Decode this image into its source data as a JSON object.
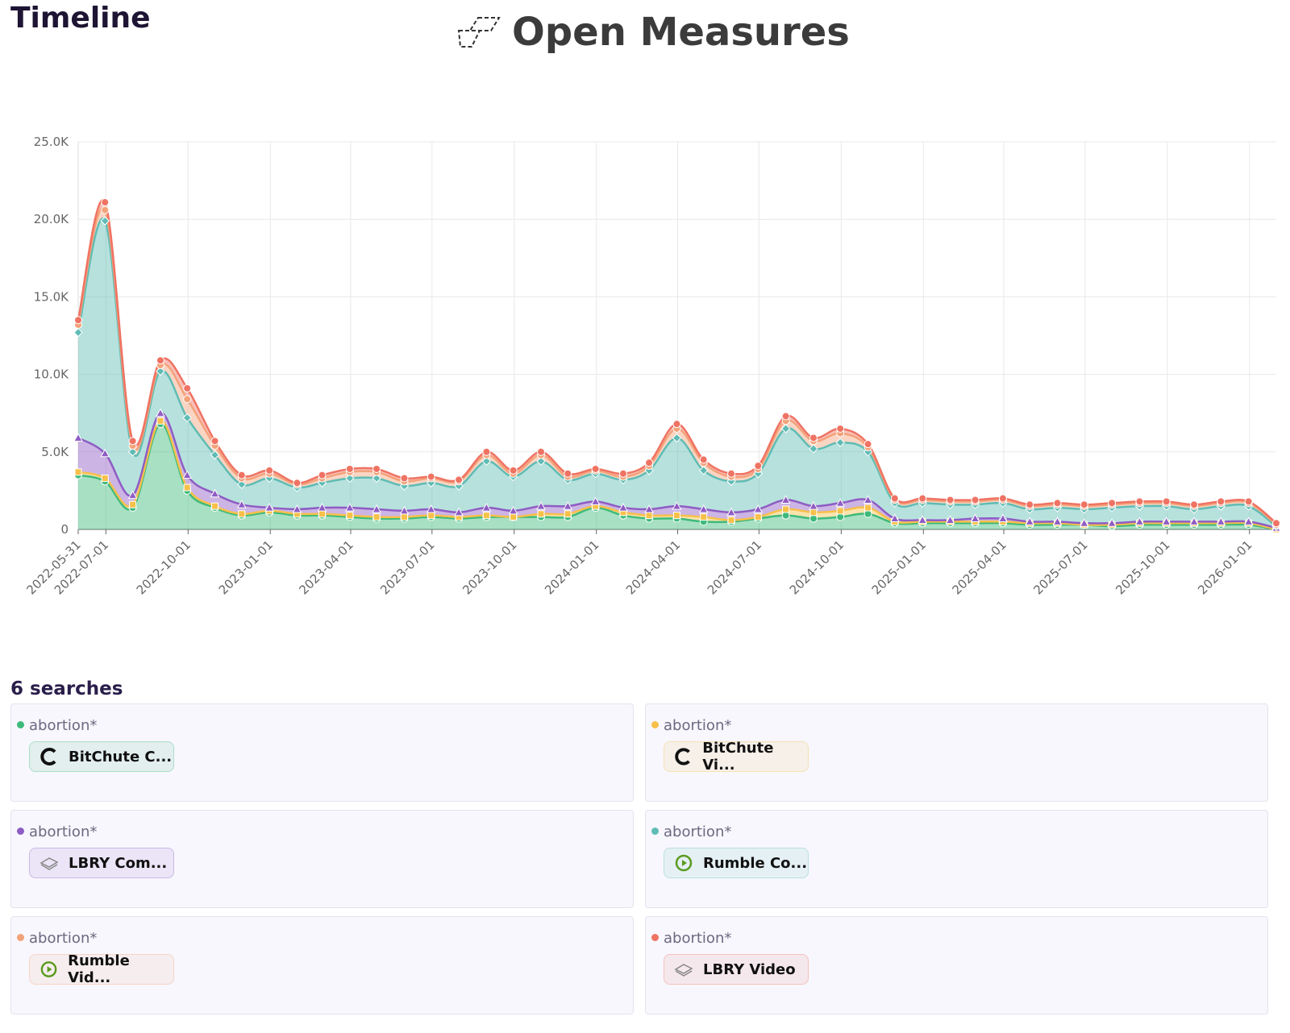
{
  "header": {
    "section_title": "Timeline",
    "brand": "Open Measures"
  },
  "chart_data": {
    "type": "stacked_area",
    "x": [
      "2022-05-31",
      "2022-06-30",
      "2022-07-31",
      "2022-08-31",
      "2022-09-30",
      "2022-10-31",
      "2022-11-30",
      "2022-12-31",
      "2023-01-31",
      "2023-02-28",
      "2023-03-31",
      "2023-04-30",
      "2023-05-31",
      "2023-06-30",
      "2023-07-31",
      "2023-08-31",
      "2023-09-30",
      "2023-10-31",
      "2023-11-30",
      "2023-12-31",
      "2024-01-31",
      "2024-02-29",
      "2024-03-31",
      "2024-04-30",
      "2024-05-31",
      "2024-06-30",
      "2024-07-31",
      "2024-08-31",
      "2024-09-30",
      "2024-10-31",
      "2024-11-30",
      "2024-12-31",
      "2025-01-31",
      "2025-02-28",
      "2025-03-31",
      "2025-04-30",
      "2025-05-31",
      "2025-06-30",
      "2025-07-31",
      "2025-08-31",
      "2025-09-30",
      "2025-10-31",
      "2025-11-30",
      "2025-12-31",
      "2026-01-31"
    ],
    "xlim": [
      "2022-05-31",
      "2026-01-31"
    ],
    "xticks": [
      "2022-05-31",
      "2022-07-01",
      "2022-10-01",
      "2023-01-01",
      "2023-04-01",
      "2023-07-01",
      "2023-10-01",
      "2024-01-01",
      "2024-04-01",
      "2024-07-01",
      "2024-10-01",
      "2025-01-01",
      "2025-04-01",
      "2025-07-01",
      "2025-10-01",
      "2026-01-01"
    ],
    "ylim": [
      0,
      25000
    ],
    "yticks": [
      0,
      {
        "value": 5000,
        "label": "5.0K"
      },
      {
        "value": 10000,
        "label": "10.0K"
      },
      {
        "value": 15000,
        "label": "15.0K"
      },
      {
        "value": 20000,
        "label": "20.0K"
      },
      {
        "value": 25000,
        "label": "25.0K"
      }
    ],
    "grid": true,
    "series": [
      {
        "color": "#3dba7a",
        "marker": "circle",
        "values": [
          3500,
          3100,
          1400,
          6800,
          2500,
          1400,
          900,
          1100,
          900,
          900,
          800,
          700,
          700,
          800,
          700,
          800,
          800,
          800,
          800,
          1400,
          900,
          700,
          700,
          500,
          500,
          700,
          900,
          700,
          800,
          1000,
          400,
          400,
          400,
          400,
          400,
          300,
          300,
          300,
          200,
          300,
          300,
          300,
          300,
          300,
          0
        ]
      },
      {
        "color": "#f7c04a",
        "marker": "square",
        "values": [
          200,
          200,
          200,
          200,
          200,
          100,
          100,
          100,
          100,
          100,
          100,
          100,
          100,
          100,
          100,
          100,
          0,
          200,
          200,
          100,
          200,
          200,
          200,
          300,
          100,
          100,
          400,
          400,
          400,
          400,
          100,
          100,
          100,
          100,
          100,
          100,
          100,
          0,
          100,
          100,
          100,
          100,
          100,
          100,
          0
        ]
      },
      {
        "color": "#8e5cc4",
        "marker": "triangle",
        "values": [
          2200,
          1600,
          600,
          500,
          800,
          800,
          600,
          200,
          300,
          400,
          500,
          500,
          400,
          400,
          300,
          500,
          400,
          500,
          500,
          300,
          300,
          400,
          600,
          500,
          500,
          500,
          600,
          400,
          500,
          500,
          200,
          100,
          100,
          200,
          200,
          100,
          100,
          100,
          100,
          100,
          100,
          100,
          100,
          100,
          100
        ]
      },
      {
        "color": "#5fbcb4",
        "marker": "diamond",
        "values": [
          6800,
          15000,
          2800,
          2700,
          3700,
          2500,
          1300,
          1900,
          1400,
          1600,
          1900,
          2000,
          1600,
          1700,
          1700,
          3000,
          2200,
          2900,
          1700,
          1800,
          1800,
          2500,
          4400,
          2500,
          2000,
          2300,
          4600,
          3700,
          3900,
          3100,
          1000,
          1100,
          1000,
          900,
          1000,
          800,
          900,
          900,
          1000,
          1000,
          1000,
          800,
          1000,
          1000,
          100
        ]
      },
      {
        "color": "#f4a27a",
        "marker": "circle",
        "values": [
          500,
          700,
          400,
          400,
          1200,
          600,
          400,
          300,
          200,
          300,
          400,
          400,
          300,
          300,
          300,
          400,
          200,
          400,
          200,
          200,
          200,
          300,
          600,
          500,
          300,
          300,
          500,
          500,
          600,
          300,
          200,
          200,
          200,
          200,
          200,
          200,
          200,
          200,
          200,
          200,
          200,
          200,
          200,
          200,
          100
        ]
      },
      {
        "color": "#ef7363",
        "marker": "circle",
        "values": [
          300,
          500,
          300,
          300,
          700,
          300,
          200,
          200,
          100,
          200,
          200,
          200,
          200,
          100,
          100,
          200,
          200,
          200,
          200,
          100,
          200,
          200,
          300,
          200,
          200,
          200,
          300,
          200,
          300,
          200,
          100,
          100,
          100,
          100,
          100,
          100,
          100,
          100,
          100,
          100,
          100,
          100,
          100,
          100,
          100
        ]
      }
    ]
  },
  "searches": {
    "title": "6 searches",
    "items": [
      {
        "term": "abortion*",
        "source": "BitChute C..."
      },
      {
        "term": "abortion*",
        "source": "BitChute Vi..."
      },
      {
        "term": "abortion*",
        "source": "LBRY Com..."
      },
      {
        "term": "abortion*",
        "source": "Rumble Co..."
      },
      {
        "term": "abortion*",
        "source": "Rumble Vid..."
      },
      {
        "term": "abortion*",
        "source": "LBRY Video"
      }
    ]
  }
}
